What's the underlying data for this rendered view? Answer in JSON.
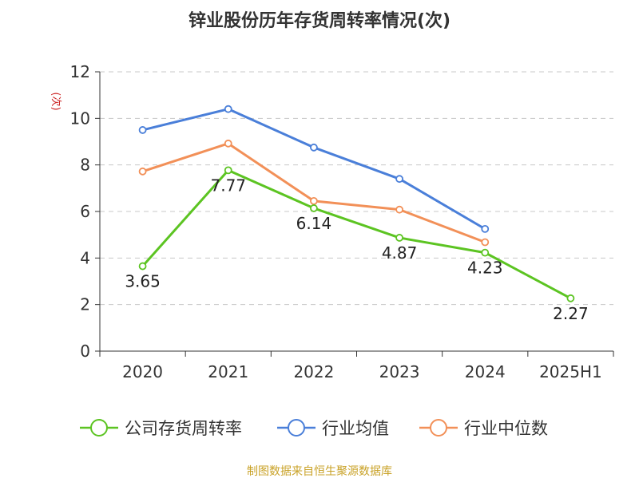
{
  "chart_data": {
    "type": "line",
    "title": "锌业股份历年存货周转率情况(次)",
    "ylabel": "(次)",
    "xlabel": "",
    "categories": [
      "2020",
      "2021",
      "2022",
      "2023",
      "2024",
      "2025H1"
    ],
    "ylim": [
      0,
      12
    ],
    "yticks": [
      0,
      2,
      4,
      6,
      8,
      10,
      12
    ],
    "grid": true,
    "legend_position": "bottom",
    "series": [
      {
        "name": "公司存货周转率",
        "color": "#5cc422",
        "values": [
          3.65,
          7.77,
          6.14,
          4.87,
          4.23,
          2.27
        ],
        "labels": [
          "3.65",
          "7.77",
          "6.14",
          "4.87",
          "4.23",
          "2.27"
        ]
      },
      {
        "name": "行业均值",
        "color": "#4a7fd9",
        "values": [
          9.5,
          10.4,
          8.75,
          7.4,
          5.25,
          null
        ]
      },
      {
        "name": "行业中位数",
        "color": "#f29058",
        "values": [
          7.72,
          8.92,
          6.45,
          6.08,
          4.68,
          null
        ]
      }
    ],
    "source": "制图数据来自恒生聚源数据库"
  }
}
